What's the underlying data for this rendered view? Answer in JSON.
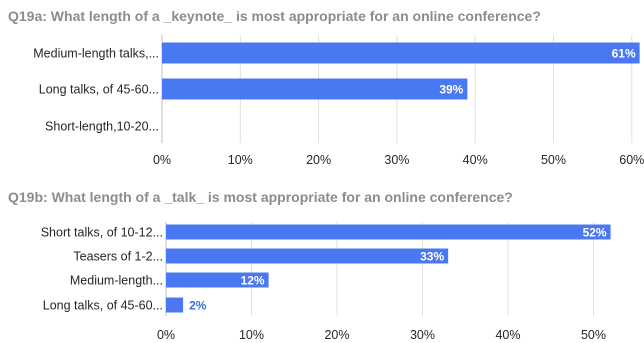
{
  "chart_data": [
    {
      "type": "bar",
      "orientation": "horizontal",
      "title": "Q19a: What length of a _keynote_ is most appropriate for an online conference?",
      "categories": [
        "Medium-length talks,...",
        "Long talks, of 45-60...",
        "Short-length,10-20..."
      ],
      "values": [
        61,
        39,
        0
      ],
      "data_labels": [
        "61%",
        "39%",
        ""
      ],
      "xlim": [
        0,
        60
      ],
      "x_ticks": [
        "0%",
        "10%",
        "20%",
        "30%",
        "40%",
        "50%",
        "60%"
      ],
      "grid": true,
      "bar_color": "#4a78f2"
    },
    {
      "type": "bar",
      "orientation": "horizontal",
      "title": "Q19b: What length of a _talk_ is most appropriate for an online conference?",
      "categories": [
        "Short talks, of 10-12...",
        "Teasers of 1-2...",
        "Medium-length...",
        "Long talks, of 45-60..."
      ],
      "values": [
        52,
        33,
        12,
        2
      ],
      "data_labels": [
        "52%",
        "33%",
        "12%",
        "2%"
      ],
      "xlim": [
        0,
        50
      ],
      "x_ticks": [
        "0%",
        "10%",
        "20%",
        "30%",
        "40%",
        "50%"
      ],
      "grid": true,
      "bar_color": "#4a78f2"
    }
  ]
}
